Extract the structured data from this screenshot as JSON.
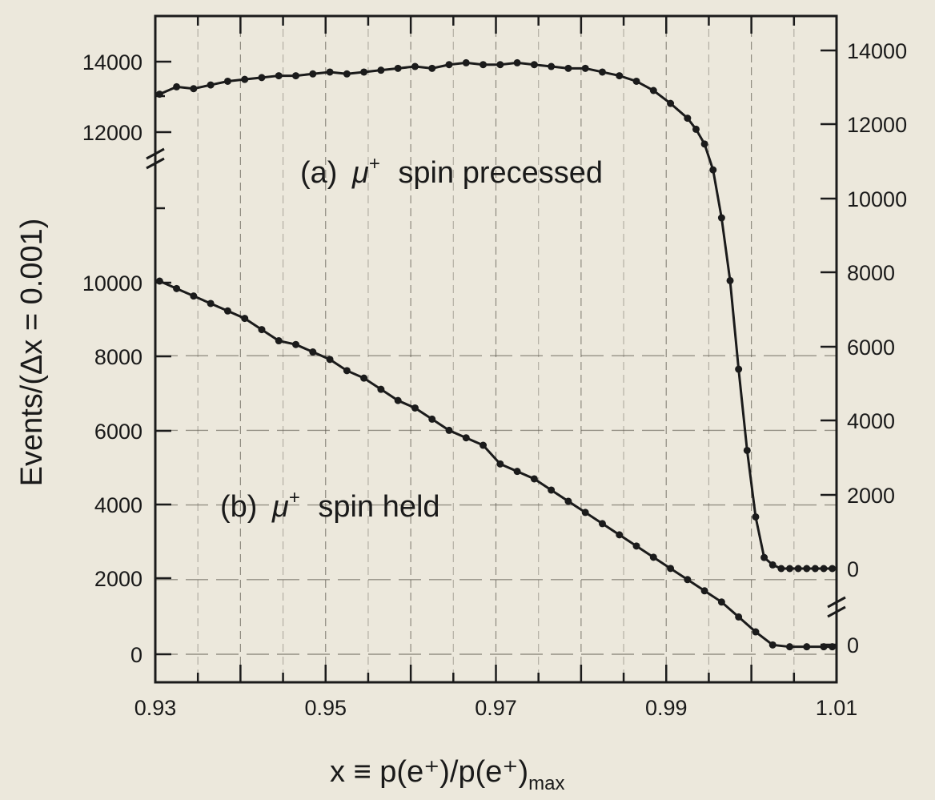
{
  "chart_data": {
    "type": "scatter",
    "xlabel": "x ≡ p(e⁺)/p(e⁺)",
    "xlabel_sub": "max",
    "ylabel": "Events/(Δx = 0.001)",
    "x_ticks": [
      "0.93",
      "0.95",
      "0.97",
      "0.99",
      "1.01"
    ],
    "x_tick_values": [
      0.93,
      0.95,
      0.97,
      0.99,
      1.01
    ],
    "xlim": [
      0.93,
      1.01
    ],
    "y_left_ticks": [
      "0",
      "2000",
      "4000",
      "6000",
      "8000",
      "10000",
      "12000",
      "14000"
    ],
    "y_right_ticks": [
      "0",
      "0",
      "2000",
      "4000",
      "6000",
      "8000",
      "10000",
      "12000",
      "14000"
    ],
    "grid": true,
    "series": [
      {
        "name": "(a) μ⁺ spin precessed",
        "label_prefix": "(a)",
        "label_symbol": "μ",
        "label_sup": "+",
        "label_suffix": "spin precessed",
        "axis": "right",
        "ylim": [
          0,
          14000
        ],
        "x": [
          0.9305,
          0.9325,
          0.9345,
          0.9365,
          0.9385,
          0.9405,
          0.9425,
          0.9445,
          0.9465,
          0.9485,
          0.9505,
          0.9525,
          0.9545,
          0.9565,
          0.9585,
          0.9605,
          0.9625,
          0.9645,
          0.9665,
          0.9685,
          0.9705,
          0.9725,
          0.9745,
          0.9765,
          0.9785,
          0.9805,
          0.9825,
          0.9845,
          0.9865,
          0.9885,
          0.9905,
          0.9925,
          0.9935,
          0.9945,
          0.9955,
          0.9965,
          0.9975,
          0.9985,
          0.9995,
          1.0005,
          1.0015,
          1.0025,
          1.0035,
          1.0045,
          1.0055,
          1.0065,
          1.0075,
          1.0085,
          1.0095
        ],
        "y": [
          12850,
          13050,
          13000,
          13100,
          13200,
          13250,
          13300,
          13350,
          13350,
          13400,
          13450,
          13400,
          13450,
          13500,
          13550,
          13600,
          13550,
          13650,
          13700,
          13650,
          13650,
          13700,
          13650,
          13600,
          13550,
          13550,
          13450,
          13350,
          13200,
          12950,
          12600,
          12200,
          11900,
          11500,
          10800,
          9500,
          7800,
          5400,
          3200,
          1400,
          300,
          100,
          0,
          0,
          0,
          0,
          0,
          0,
          0
        ]
      },
      {
        "name": "(b) μ⁺ spin held",
        "label_prefix": "(b)",
        "label_symbol": "μ",
        "label_sup": "+",
        "label_suffix": "spin held",
        "axis": "left",
        "ylim": [
          0,
          15500
        ],
        "x": [
          0.9305,
          0.9325,
          0.9345,
          0.9365,
          0.9385,
          0.9405,
          0.9425,
          0.9445,
          0.9465,
          0.9485,
          0.9505,
          0.9525,
          0.9545,
          0.9565,
          0.9585,
          0.9605,
          0.9625,
          0.9645,
          0.9665,
          0.9685,
          0.9705,
          0.9725,
          0.9745,
          0.9765,
          0.9785,
          0.9805,
          0.9825,
          0.9845,
          0.9865,
          0.9885,
          0.9905,
          0.9925,
          0.9945,
          0.9965,
          0.9985,
          1.0005,
          1.0025,
          1.0045,
          1.0065,
          1.0085,
          1.0095
        ],
        "y": [
          10000,
          9800,
          9600,
          9400,
          9200,
          9000,
          8700,
          8400,
          8300,
          8100,
          7900,
          7600,
          7400,
          7100,
          6800,
          6600,
          6300,
          6000,
          5800,
          5600,
          5100,
          4900,
          4700,
          4400,
          4100,
          3800,
          3500,
          3200,
          2900,
          2600,
          2300,
          2000,
          1700,
          1400,
          1000,
          600,
          250,
          200,
          200,
          200,
          200
        ]
      }
    ]
  }
}
